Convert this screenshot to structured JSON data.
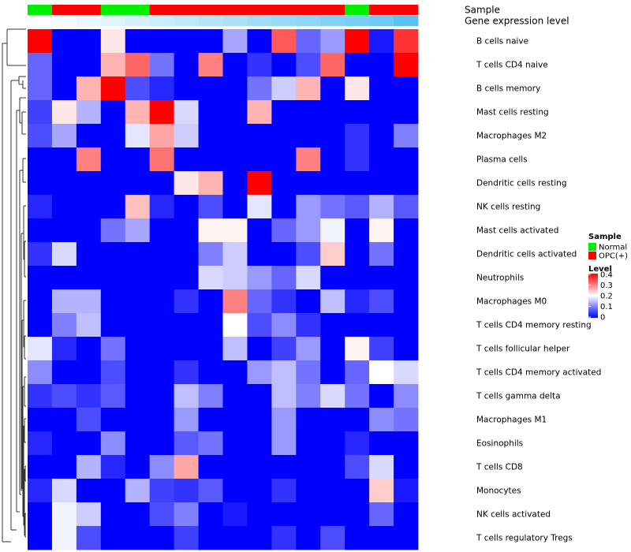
{
  "chart_data": {
    "type": "heatmap",
    "annotation_labels": [
      "Sample",
      "Gene expression level"
    ],
    "legends": {
      "sample": {
        "title": "Sample",
        "entries": [
          {
            "label": "Normal",
            "color": "#00ee00"
          },
          {
            "label": "OPC(+)",
            "color": "#ff0000"
          }
        ]
      },
      "level": {
        "title": "Level",
        "ticks": [
          "0.4",
          "0.3",
          "0.2",
          "0.1",
          "0"
        ],
        "range": [
          0,
          0.4
        ],
        "colors": {
          "low": "#0000ff",
          "mid": "#ffffff",
          "high": "#ff0000"
        },
        "mid_value": 0.2
      }
    },
    "samples": [
      "Normal",
      "OPC(+)",
      "OPC(+)",
      "Normal",
      "Normal",
      "OPC(+)",
      "OPC(+)",
      "OPC(+)",
      "OPC(+)",
      "OPC(+)",
      "OPC(+)",
      "OPC(+)",
      "OPC(+)",
      "Normal",
      "OPC(+)",
      "OPC(+)"
    ],
    "expression_level": [
      0.0,
      0.01,
      0.02,
      0.03,
      0.04,
      0.05,
      0.06,
      0.07,
      0.08,
      0.09,
      0.1,
      0.11,
      0.12,
      0.13,
      0.14,
      0.16
    ],
    "rows": [
      "B cells naive",
      "T cells CD4 naive",
      "B cells memory",
      "Mast cells resting",
      "Macrophages M2",
      "Plasma cells",
      "Dendritic cells resting",
      "NK cells resting",
      "Mast cells activated",
      "Dendritic cells activated",
      "Neutrophils",
      "Macrophages M0",
      "T cells CD4 memory resting",
      "T cells follicular helper",
      "T cells CD4 memory activated",
      "T cells gamma delta",
      "Macrophages M1",
      "Eosinophils",
      "T cells CD8",
      "Monocytes",
      "NK cells activated",
      "T cells regulatory  Tregs"
    ],
    "values": [
      [
        0.4,
        0.0,
        0.0,
        0.22,
        0.0,
        0.0,
        0.0,
        0.0,
        0.13,
        0.0,
        0.33,
        0.08,
        0.12,
        0.4,
        0.02,
        0.36
      ],
      [
        0.08,
        0.0,
        0.0,
        0.26,
        0.32,
        0.09,
        0.0,
        0.3,
        0.0,
        0.04,
        0.0,
        0.06,
        0.32,
        0.0,
        0.0,
        0.4
      ],
      [
        0.08,
        0.0,
        0.26,
        0.4,
        0.06,
        0.03,
        0.0,
        0.0,
        0.0,
        0.09,
        0.16,
        0.26,
        0.0,
        0.22,
        0.0,
        0.0
      ],
      [
        0.05,
        0.22,
        0.14,
        0.0,
        0.26,
        0.4,
        0.17,
        0.0,
        0.0,
        0.26,
        0.0,
        0.0,
        0.0,
        0.0,
        0.0,
        0.0
      ],
      [
        0.06,
        0.13,
        0.0,
        0.0,
        0.18,
        0.27,
        0.16,
        0.0,
        0.0,
        0.0,
        0.0,
        0.0,
        0.0,
        0.04,
        0.0,
        0.1
      ],
      [
        0.0,
        0.0,
        0.3,
        0.0,
        0.0,
        0.31,
        0.0,
        0.0,
        0.0,
        0.0,
        0.0,
        0.3,
        0.0,
        0.04,
        0.0,
        0.0
      ],
      [
        0.0,
        0.0,
        0.0,
        0.0,
        0.0,
        0.0,
        0.22,
        0.26,
        0.0,
        0.4,
        0.0,
        0.0,
        0.0,
        0.0,
        0.0,
        0.0
      ],
      [
        0.03,
        0.0,
        0.0,
        0.0,
        0.25,
        0.03,
        0.0,
        0.06,
        0.0,
        0.18,
        0.0,
        0.12,
        0.09,
        0.07,
        0.14,
        0.07
      ],
      [
        0.0,
        0.0,
        0.0,
        0.09,
        0.13,
        0.0,
        0.0,
        0.21,
        0.21,
        0.0,
        0.08,
        0.12,
        0.19,
        0.0,
        0.21,
        0.0
      ],
      [
        0.04,
        0.17,
        0.0,
        0.0,
        0.0,
        0.0,
        0.0,
        0.1,
        0.16,
        0.0,
        0.0,
        0.06,
        0.24,
        0.0,
        0.09,
        0.0
      ],
      [
        0.0,
        0.0,
        0.0,
        0.0,
        0.0,
        0.0,
        0.0,
        0.17,
        0.16,
        0.12,
        0.08,
        0.17,
        0.0,
        0.0,
        0.0,
        0.0
      ],
      [
        0.0,
        0.14,
        0.14,
        0.0,
        0.0,
        0.0,
        0.04,
        0.0,
        0.3,
        0.08,
        0.04,
        0.0,
        0.15,
        0.03,
        0.06,
        0.0
      ],
      [
        0.0,
        0.1,
        0.15,
        0.0,
        0.0,
        0.0,
        0.0,
        0.0,
        0.2,
        0.06,
        0.11,
        0.04,
        0.0,
        0.0,
        0.0,
        0.0
      ],
      [
        0.18,
        0.03,
        0.0,
        0.09,
        0.0,
        0.0,
        0.0,
        0.0,
        0.15,
        0.0,
        0.05,
        0.12,
        0.0,
        0.21,
        0.05,
        0.0
      ],
      [
        0.11,
        0.0,
        0.0,
        0.06,
        0.0,
        0.0,
        0.04,
        0.0,
        0.0,
        0.12,
        0.15,
        0.09,
        0.0,
        0.08,
        0.2,
        0.17
      ],
      [
        0.04,
        0.06,
        0.04,
        0.07,
        0.0,
        0.0,
        0.15,
        0.1,
        0.0,
        0.0,
        0.15,
        0.1,
        0.17,
        0.09,
        0.0,
        0.11
      ],
      [
        0.0,
        0.0,
        0.06,
        0.0,
        0.0,
        0.0,
        0.12,
        0.0,
        0.0,
        0.0,
        0.12,
        0.0,
        0.0,
        0.0,
        0.11,
        0.09
      ],
      [
        0.03,
        0.0,
        0.0,
        0.11,
        0.0,
        0.0,
        0.07,
        0.09,
        0.0,
        0.0,
        0.12,
        0.0,
        0.0,
        0.03,
        0.0,
        0.0
      ],
      [
        0.0,
        0.0,
        0.14,
        0.03,
        0.0,
        0.11,
        0.27,
        0.0,
        0.0,
        0.0,
        0.0,
        0.0,
        0.0,
        0.06,
        0.17,
        0.0
      ],
      [
        0.03,
        0.17,
        0.0,
        0.0,
        0.14,
        0.05,
        0.04,
        0.07,
        0.0,
        0.0,
        0.04,
        0.0,
        0.0,
        0.0,
        0.24,
        0.02
      ],
      [
        0.0,
        0.19,
        0.16,
        0.0,
        0.0,
        0.06,
        0.1,
        0.0,
        0.02,
        0.0,
        0.0,
        0.0,
        0.0,
        0.0,
        0.08,
        0.0
      ],
      [
        0.0,
        0.19,
        0.06,
        0.0,
        0.0,
        0.0,
        0.05,
        0.0,
        0.0,
        0.0,
        0.04,
        0.0,
        0.06,
        0.0,
        0.0,
        0.0
      ]
    ]
  }
}
